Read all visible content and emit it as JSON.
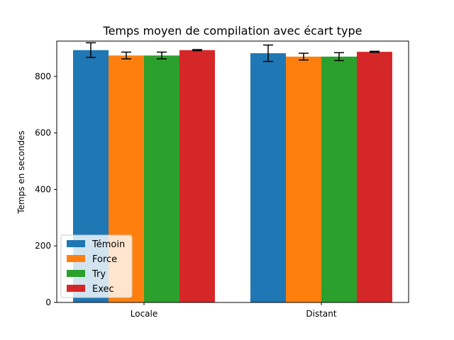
{
  "chart_data": {
    "type": "bar",
    "title": "Temps moyen de compilation avec écart type",
    "xlabel": "",
    "ylabel": "Temps en secondes",
    "categories": [
      "Locale",
      "Distant"
    ],
    "ylim": [
      0,
      925
    ],
    "yticks": [
      0,
      200,
      400,
      600,
      800
    ],
    "grid": false,
    "legend_position": "lower-left",
    "series": [
      {
        "name": "Témoin",
        "color": "#1f77b4",
        "values": [
          893,
          882
        ],
        "errors": [
          26,
          29
        ]
      },
      {
        "name": "Force",
        "color": "#ff7f0e",
        "values": [
          874,
          870
        ],
        "errors": [
          12,
          12
        ]
      },
      {
        "name": "Try",
        "color": "#2ca02c",
        "values": [
          874,
          870
        ],
        "errors": [
          12,
          14
        ]
      },
      {
        "name": "Exec",
        "color": "#d62728",
        "values": [
          893,
          887
        ],
        "errors": [
          2,
          2
        ]
      }
    ]
  }
}
